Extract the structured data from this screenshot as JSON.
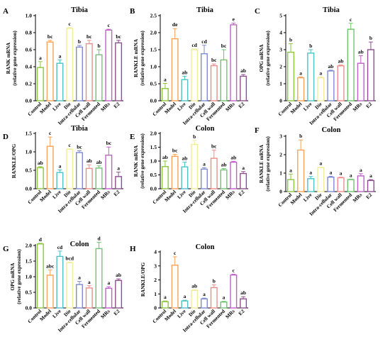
{
  "chart_data": [
    {
      "letter": "A",
      "title": "Tibia",
      "type": "bar",
      "ylabel": [
        "RANK mRNA",
        "(relative gene expression)"
      ],
      "ylim": [
        0.0,
        1.0
      ],
      "ticks": [
        "0.0",
        "0.2",
        "0.4",
        "0.6",
        "0.8",
        "1.0"
      ],
      "categories": [
        "Control",
        "Model",
        "Live",
        "Die",
        "Intra-cellular",
        "Cell wall",
        "Fermented",
        "MRs",
        "E2"
      ],
      "values": [
        0.39,
        0.69,
        0.44,
        0.85,
        0.63,
        0.67,
        0.54,
        0.83,
        0.68
      ],
      "errors": [
        0.07,
        0.02,
        0.04,
        0.01,
        0.02,
        0.04,
        0.06,
        0.01,
        0.03
      ],
      "labels": [
        "a",
        "bc",
        "a",
        "c",
        "b",
        "bc",
        "b",
        "c",
        "bc"
      ]
    },
    {
      "letter": "B",
      "title": "Tibia",
      "type": "bar",
      "ylabel": [
        "RANKLE mRNA",
        "(relative gene expression)"
      ],
      "ylim": [
        0.0,
        2.5
      ],
      "ticks": [
        "0.0",
        "0.5",
        "1.0",
        "1.5",
        "2.0",
        "2.5"
      ],
      "categories": [
        "Control",
        "Model",
        "Live",
        "Die",
        "Intra-cellular",
        "Cell wall",
        "Fermented",
        "MRs",
        "E2"
      ],
      "values": [
        0.36,
        1.82,
        0.62,
        1.5,
        1.38,
        1.03,
        1.2,
        2.23,
        0.72
      ],
      "errors": [
        0.15,
        0.3,
        0.1,
        0.02,
        0.25,
        0.05,
        0.3,
        0.05,
        0.05
      ],
      "labels": [
        "a",
        "de",
        "ab",
        "cd",
        "cd",
        "bc",
        "bc",
        "e",
        "ab"
      ]
    },
    {
      "letter": "C",
      "title": "Tibia",
      "type": "bar",
      "ylabel": [
        "OPG mRNA",
        "(relative gene expression)"
      ],
      "ylim": [
        0,
        5
      ],
      "ticks": [
        "0",
        "1",
        "2",
        "3",
        "4",
        "5"
      ],
      "categories": [
        "Control",
        "Model",
        "Live",
        "Die",
        "Intra-cellular",
        "Cell wall",
        "Fermented",
        "MRs",
        "E2"
      ],
      "values": [
        2.85,
        1.35,
        2.8,
        1.35,
        1.75,
        2.05,
        4.2,
        2.2,
        3.0
      ],
      "errors": [
        0.5,
        0.05,
        0.2,
        0.05,
        0.05,
        0.05,
        0.35,
        0.45,
        0.45
      ],
      "labels": [
        "b",
        "a",
        "b",
        "a",
        "ab",
        "ab",
        "c",
        "ab",
        "b"
      ]
    },
    {
      "letter": "D",
      "title": "Tibia",
      "type": "bar",
      "ylabel": [
        "RANKLE/OPG"
      ],
      "ylim": [
        0.0,
        1.5
      ],
      "ticks": [
        "0.0",
        "0.5",
        "1.0",
        "1.5"
      ],
      "categories": [
        "Control",
        "Model",
        "Live",
        "Die",
        "Intra-cellular",
        "Cell wall",
        "Fermented",
        "MRs",
        "E2"
      ],
      "values": [
        0.57,
        1.15,
        0.44,
        1.07,
        0.98,
        0.55,
        0.56,
        0.91,
        0.33
      ],
      "errors": [
        0.03,
        0.25,
        0.07,
        0.01,
        0.05,
        0.1,
        0.06,
        0.22,
        0.12
      ],
      "labels": [
        "ab",
        "c",
        "a",
        "c",
        "bc",
        "ab",
        "ab",
        "bc",
        "a"
      ]
    },
    {
      "letter": "E",
      "title": "Colon",
      "type": "bar",
      "ylabel": [
        "RANK mRNA",
        "(relative gene expression)"
      ],
      "ylim": [
        0.0,
        2.0
      ],
      "ticks": [
        "0.0",
        "0.5",
        "1.0",
        "1.5",
        "2.0"
      ],
      "categories": [
        "Control",
        "Model",
        "Live",
        "Die",
        "Intra-cellular",
        "Cell wall",
        "Fermented",
        "MRs",
        "E2"
      ],
      "values": [
        0.8,
        1.17,
        0.79,
        1.6,
        0.71,
        1.1,
        0.68,
        0.96,
        0.55
      ],
      "errors": [
        0.2,
        0.07,
        0.17,
        0.15,
        0.05,
        0.3,
        0.05,
        0.03,
        0.07
      ],
      "labels": [
        "ab",
        "bc",
        "ab",
        "b",
        "a",
        "bc",
        "ab",
        "ab",
        "a"
      ]
    },
    {
      "letter": "F",
      "title": "Colon",
      "type": "bar",
      "ylabel": [
        "RANKLE mRNA",
        "(relative gene expression)"
      ],
      "ylim": [
        0,
        3
      ],
      "ticks": [
        "0",
        "1",
        "2",
        "3"
      ],
      "categories": [
        "Control",
        "Model",
        "Live",
        "Die",
        "Intra-cellular",
        "Cell wall",
        "Fermented",
        "MRs",
        "E2"
      ],
      "values": [
        0.65,
        2.25,
        0.7,
        1.3,
        0.78,
        0.75,
        0.65,
        0.85,
        0.6
      ],
      "errors": [
        0.3,
        0.55,
        0.12,
        0.02,
        0.05,
        0.03,
        0.02,
        0.12,
        0.05
      ],
      "labels": [
        "a",
        "b",
        "a",
        "a",
        "a",
        "a",
        "a",
        "a",
        "a"
      ]
    },
    {
      "letter": "G",
      "title": "Colon",
      "type": "bar",
      "ylabel": [
        "OPG mRNA",
        "(relative gene expression)"
      ],
      "ylim": [
        0.0,
        2.0
      ],
      "ticks": [
        "0.0",
        "0.5",
        "1.0",
        "1.5",
        "2.0"
      ],
      "categories": [
        "Control",
        "Model",
        "Live",
        "Die",
        "Intra-cellular",
        "Cell wall",
        "Fermented",
        "MRs",
        "E2"
      ],
      "values": [
        2.05,
        1.05,
        1.65,
        1.45,
        0.75,
        0.64,
        1.9,
        0.63,
        0.88
      ],
      "errors": [
        0.02,
        0.17,
        0.17,
        0.02,
        0.1,
        0.07,
        0.2,
        0.05,
        0.05
      ],
      "labels": [
        "d",
        "abc",
        "cd",
        "bcd",
        "a",
        "a",
        "d",
        "a",
        "ab"
      ]
    },
    {
      "letter": "H",
      "title": "Colon",
      "type": "bar",
      "ylabel": [
        "RANKLE/OPG"
      ],
      "ylim": [
        0,
        4
      ],
      "ticks": [
        "0",
        "1",
        "2",
        "3",
        "4"
      ],
      "categories": [
        "Control",
        "Model",
        "Live",
        "Die",
        "Intra-cellular",
        "Cell wall",
        "Fermented",
        "MRs",
        "E2"
      ],
      "values": [
        0.45,
        3.05,
        0.5,
        1.25,
        0.65,
        1.45,
        0.42,
        2.35,
        0.65
      ],
      "errors": [
        0.05,
        0.6,
        0.05,
        0.05,
        0.05,
        0.2,
        0.05,
        0.05,
        0.15
      ],
      "labels": [
        "a",
        "c",
        "a",
        "ab",
        "a",
        "b",
        "a",
        "c",
        "ab"
      ]
    }
  ],
  "colors": [
    "#8cc63f",
    "#f7a35c",
    "#4fc1c6",
    "#f2ec98",
    "#7e8bd4",
    "#f08b8b",
    "#6fc46f",
    "#c060c8",
    "#8e4f8f"
  ]
}
